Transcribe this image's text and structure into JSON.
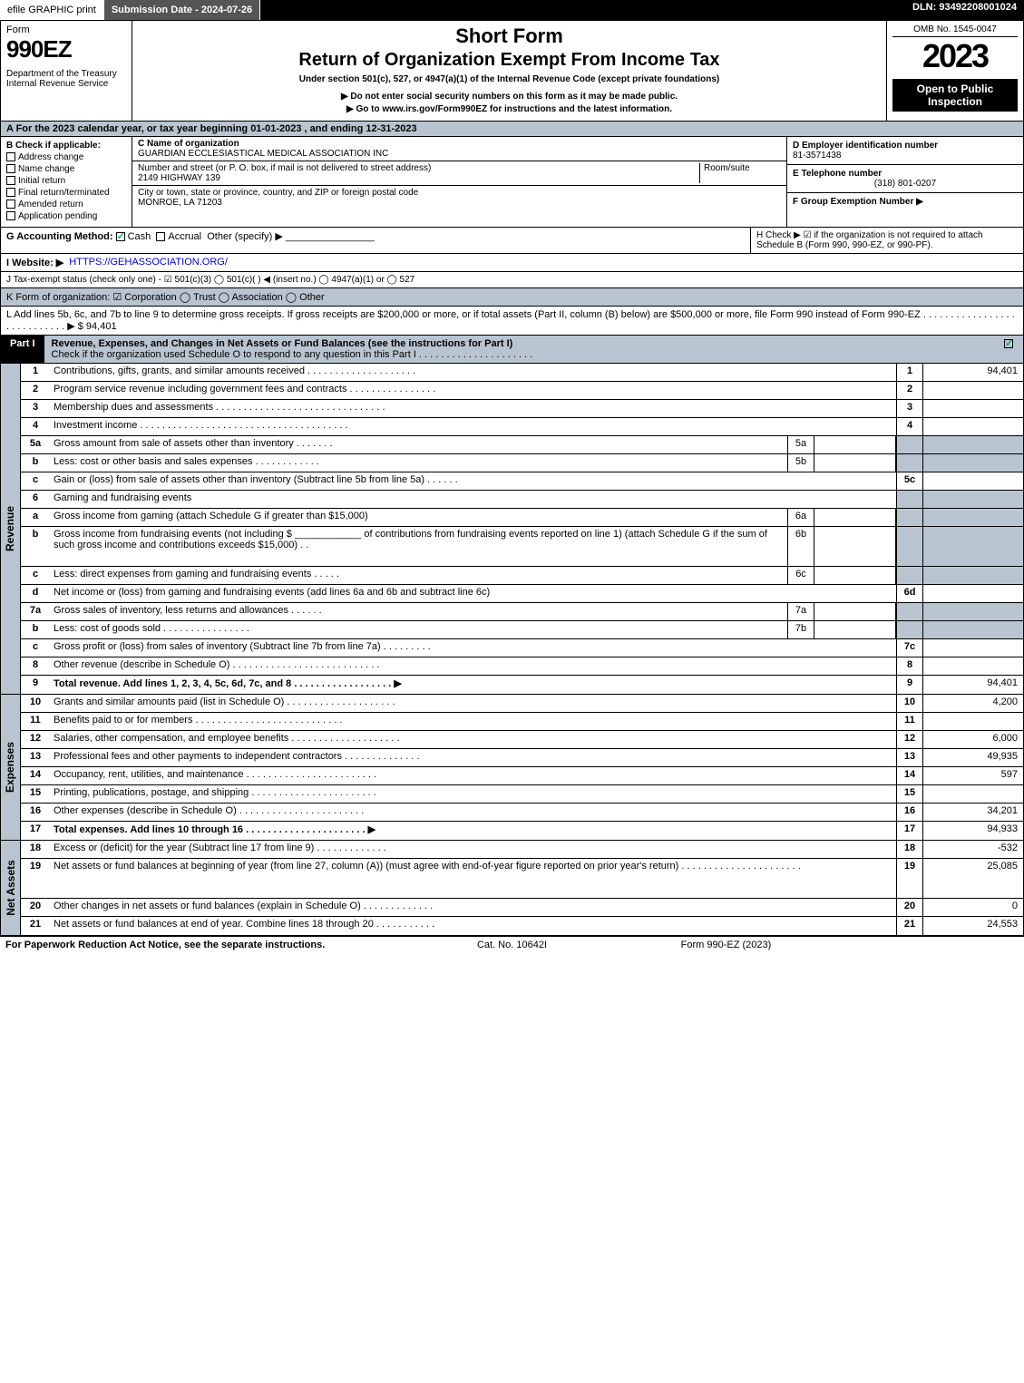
{
  "topbar": {
    "efile": "efile GRAPHIC print",
    "submission": "Submission Date - 2024-07-26",
    "dln": "DLN: 93492208001024"
  },
  "header": {
    "form_word": "Form",
    "form_num": "990EZ",
    "dept": "Department of the Treasury\nInternal Revenue Service",
    "short": "Short Form",
    "return": "Return of Organization Exempt From Income Tax",
    "under": "Under section 501(c), 527, or 4947(a)(1) of the Internal Revenue Code (except private foundations)",
    "bullet1": "▶ Do not enter social security numbers on this form as it may be made public.",
    "bullet2": "▶ Go to www.irs.gov/Form990EZ for instructions and the latest information.",
    "omb": "OMB No. 1545-0047",
    "year": "2023",
    "inspect": "Open to Public Inspection"
  },
  "A": "A  For the 2023 calendar year, or tax year beginning 01-01-2023 , and ending 12-31-2023",
  "B": {
    "title": "B  Check if applicable:",
    "items": [
      "Address change",
      "Name change",
      "Initial return",
      "Final return/terminated",
      "Amended return",
      "Application pending"
    ]
  },
  "C": {
    "label": "C Name of organization",
    "name": "GUARDIAN ECCLESIASTICAL MEDICAL ASSOCIATION INC",
    "street_label": "Number and street (or P. O. box, if mail is not delivered to street address)",
    "room_label": "Room/suite",
    "street": "2149 HIGHWAY 139",
    "city_label": "City or town, state or province, country, and ZIP or foreign postal code",
    "city": "MONROE, LA  71203"
  },
  "D": {
    "label": "D Employer identification number",
    "value": "81-3571438"
  },
  "E": {
    "label": "E Telephone number",
    "value": "(318) 801-0207"
  },
  "F": {
    "label": "F Group Exemption Number  ▶",
    "value": ""
  },
  "G": {
    "label": "G Accounting Method:",
    "cash": "Cash",
    "accrual": "Accrual",
    "other": "Other (specify) ▶"
  },
  "H": "H  Check ▶ ☑ if the organization is not required to attach Schedule B (Form 990, 990-EZ, or 990-PF).",
  "I": {
    "label": "I Website: ▶",
    "value": "HTTPS://GEHASSOCIATION.ORG/"
  },
  "J": "J Tax-exempt status (check only one) - ☑ 501(c)(3)  ◯ 501(c)(  ) ◀ (insert no.)  ◯ 4947(a)(1) or  ◯ 527",
  "K": "K Form of organization:  ☑ Corporation  ◯ Trust  ◯ Association  ◯ Other",
  "L": "L Add lines 5b, 6c, and 7b to line 9 to determine gross receipts. If gross receipts are $200,000 or more, or if total assets (Part II, column (B) below) are $500,000 or more, file Form 990 instead of Form 990-EZ  .  .  .  .  .  .  .  .  .  .  .  .  .  .  .  .  .  .  .  .  .  .  .  .  .  .  .  . ▶ $ 94,401",
  "part1": {
    "tag": "Part I",
    "title": "Revenue, Expenses, and Changes in Net Assets or Fund Balances (see the instructions for Part I)",
    "check": "Check if the organization used Schedule O to respond to any question in this Part I  .  .  .  .  .  .  .  .  .  .  .  .  .  .  .  .  .  .  .  .  ."
  },
  "revenue": [
    {
      "n": "1",
      "d": "Contributions, gifts, grants, and similar amounts received  .  .  .  .  .  .  .  .  .  .  .  .  .  .  .  .  .  .  .  .",
      "rn": "1",
      "rv": "94,401"
    },
    {
      "n": "2",
      "d": "Program service revenue including government fees and contracts .  .  .  .  .  .  .  .  .  .  .  .  .  .  .  .",
      "rn": "2",
      "rv": ""
    },
    {
      "n": "3",
      "d": "Membership dues and assessments  .  .  .  .  .  .  .  .  .  .  .  .  .  .  .  .  .  .  .  .  .  .  .  .  .  .  .  .  .  .  .",
      "rn": "3",
      "rv": ""
    },
    {
      "n": "4",
      "d": "Investment income .  .  .  .  .  .  .  .  .  .  .  .  .  .  .  .  .  .  .  .  .  .  .  .  .  .  .  .  .  .  .  .  .  .  .  .  .  .",
      "rn": "4",
      "rv": ""
    },
    {
      "n": "5a",
      "d": "Gross amount from sale of assets other than inventory  .  .  .  .  .  .  .",
      "mn": "5a",
      "mv": "",
      "gray": true
    },
    {
      "n": "b",
      "d": "Less: cost or other basis and sales expenses  .  .  .  .  .  .  .  .  .  .  .  .",
      "mn": "5b",
      "mv": "",
      "gray": true
    },
    {
      "n": "c",
      "d": "Gain or (loss) from sale of assets other than inventory (Subtract line 5b from line 5a)  .  .  .  .  .  .",
      "rn": "5c",
      "rv": ""
    },
    {
      "n": "6",
      "d": "Gaming and fundraising events",
      "gray": true
    },
    {
      "n": "a",
      "d": "Gross income from gaming (attach Schedule G if greater than $15,000)",
      "mn": "6a",
      "mv": "",
      "gray": true
    },
    {
      "n": "b",
      "d": "Gross income from fundraising events (not including $ ____________ of contributions from fundraising events reported on line 1) (attach Schedule G if the sum of such gross income and contributions exceeds $15,000)   .   .",
      "mn": "6b",
      "mv": "",
      "gray": true,
      "tall": true
    },
    {
      "n": "c",
      "d": "Less: direct expenses from gaming and fundraising events  .  .  .  .  .",
      "mn": "6c",
      "mv": "",
      "gray": true
    },
    {
      "n": "d",
      "d": "Net income or (loss) from gaming and fundraising events (add lines 6a and 6b and subtract line 6c)",
      "rn": "6d",
      "rv": ""
    },
    {
      "n": "7a",
      "d": "Gross sales of inventory, less returns and allowances  .  .  .  .  .  .",
      "mn": "7a",
      "mv": "",
      "gray": true
    },
    {
      "n": "b",
      "d": "Less: cost of goods sold       .  .  .  .  .  .  .  .  .  .  .  .  .  .  .  .",
      "mn": "7b",
      "mv": "",
      "gray": true
    },
    {
      "n": "c",
      "d": "Gross profit or (loss) from sales of inventory (Subtract line 7b from line 7a)  .  .  .  .  .  .  .  .  .",
      "rn": "7c",
      "rv": ""
    },
    {
      "n": "8",
      "d": "Other revenue (describe in Schedule O) .  .  .  .  .  .  .  .  .  .  .  .  .  .  .  .  .  .  .  .  .  .  .  .  .  .  .",
      "rn": "8",
      "rv": ""
    },
    {
      "n": "9",
      "d": "Total revenue. Add lines 1, 2, 3, 4, 5c, 6d, 7c, and 8   .  .  .  .  .  .  .  .  .  .  .  .  .  .  .  .  .  .  ▶",
      "rn": "9",
      "rv": "94,401",
      "bold": true
    }
  ],
  "expenses": [
    {
      "n": "10",
      "d": "Grants and similar amounts paid (list in Schedule O) .  .  .  .  .  .  .  .  .  .  .  .  .  .  .  .  .  .  .  .",
      "rn": "10",
      "rv": "4,200"
    },
    {
      "n": "11",
      "d": "Benefits paid to or for members     .  .  .  .  .  .  .  .  .  .  .  .  .  .  .  .  .  .  .  .  .  .  .  .  .  .  .",
      "rn": "11",
      "rv": ""
    },
    {
      "n": "12",
      "d": "Salaries, other compensation, and employee benefits .  .  .  .  .  .  .  .  .  .  .  .  .  .  .  .  .  .  .  .",
      "rn": "12",
      "rv": "6,000"
    },
    {
      "n": "13",
      "d": "Professional fees and other payments to independent contractors  .  .  .  .  .  .  .  .  .  .  .  .  .  .",
      "rn": "13",
      "rv": "49,935"
    },
    {
      "n": "14",
      "d": "Occupancy, rent, utilities, and maintenance .  .  .  .  .  .  .  .  .  .  .  .  .  .  .  .  .  .  .  .  .  .  .  .",
      "rn": "14",
      "rv": "597"
    },
    {
      "n": "15",
      "d": "Printing, publications, postage, and shipping .  .  .  .  .  .  .  .  .  .  .  .  .  .  .  .  .  .  .  .  .  .  .",
      "rn": "15",
      "rv": ""
    },
    {
      "n": "16",
      "d": "Other expenses (describe in Schedule O)     .  .  .  .  .  .  .  .  .  .  .  .  .  .  .  .  .  .  .  .  .  .  .",
      "rn": "16",
      "rv": "34,201"
    },
    {
      "n": "17",
      "d": "Total expenses. Add lines 10 through 16     .  .  .  .  .  .  .  .  .  .  .  .  .  .  .  .  .  .  .  .  .  . ▶",
      "rn": "17",
      "rv": "94,933",
      "bold": true
    }
  ],
  "netassets": [
    {
      "n": "18",
      "d": "Excess or (deficit) for the year (Subtract line 17 from line 9)       .  .  .  .  .  .  .  .  .  .  .  .  .",
      "rn": "18",
      "rv": "-532"
    },
    {
      "n": "19",
      "d": "Net assets or fund balances at beginning of year (from line 27, column (A)) (must agree with end-of-year figure reported on prior year's return) .  .  .  .  .  .  .  .  .  .  .  .  .  .  .  .  .  .  .  .  .  .",
      "rn": "19",
      "rv": "25,085",
      "tall": true
    },
    {
      "n": "20",
      "d": "Other changes in net assets or fund balances (explain in Schedule O) .  .  .  .  .  .  .  .  .  .  .  .  .",
      "rn": "20",
      "rv": "0"
    },
    {
      "n": "21",
      "d": "Net assets or fund balances at end of year. Combine lines 18 through 20 .  .  .  .  .  .  .  .  .  .  .",
      "rn": "21",
      "rv": "24,553"
    }
  ],
  "footer": {
    "l": "For Paperwork Reduction Act Notice, see the separate instructions.",
    "c": "Cat. No. 10642I",
    "r": "Form 990-EZ (2023)"
  },
  "sides": {
    "rev": "Revenue",
    "exp": "Expenses",
    "net": "Net Assets"
  }
}
